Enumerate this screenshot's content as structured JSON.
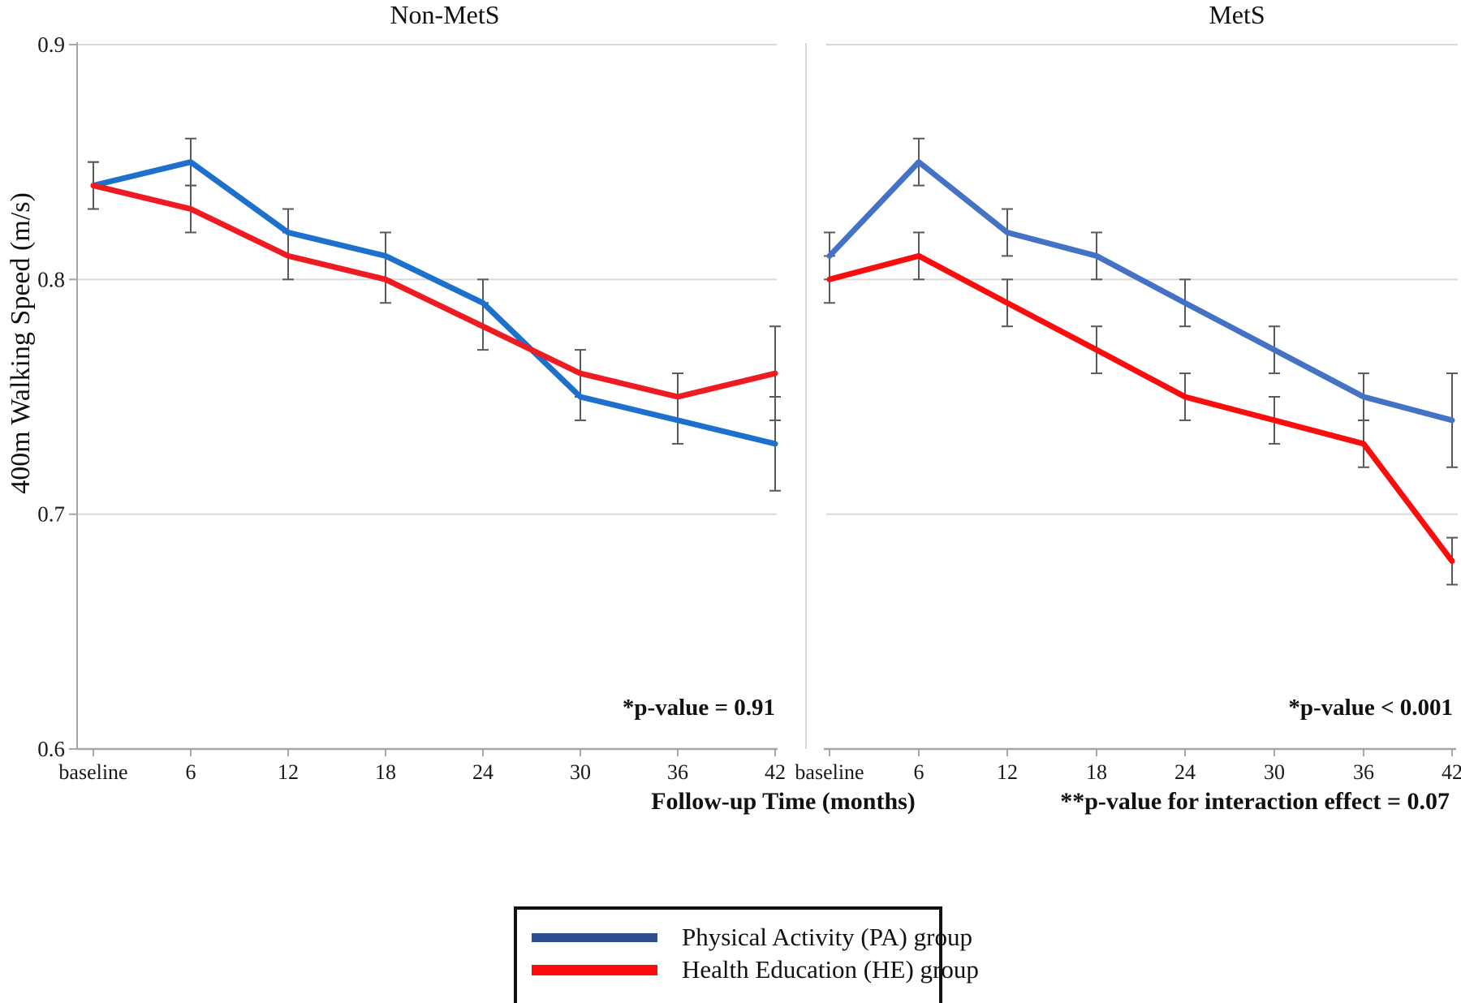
{
  "figure": {
    "y_axis_title": "400m Walking Speed (m/s)",
    "x_axis_title": "Follow-up Time (months)",
    "interaction_note": "**p-value for interaction effect = 0.07"
  },
  "chart_data": {
    "type": "line",
    "xlabel": "Follow-up Time (months)",
    "ylabel": "400m Walking Speed (m/s)",
    "ylim": [
      0.6,
      0.9
    ],
    "ytick_labels": [
      "0.9",
      "0.8",
      "0.7",
      "0.6"
    ],
    "yticks": [
      0.9,
      0.8,
      0.7,
      0.6
    ],
    "gridlines": [
      0.9,
      0.8,
      0.7
    ],
    "grid_on": true,
    "categories": [
      "baseline",
      "6",
      "12",
      "18",
      "24",
      "30",
      "36",
      "42"
    ],
    "panels": [
      {
        "title": "Non-MetS",
        "annotation": "*p-value = 0.91",
        "series": [
          {
            "name": "Physical Activity (PA) group",
            "color": "#1d71cd",
            "values": [
              0.84,
              0.85,
              0.82,
              0.81,
              0.79,
              0.75,
              0.74,
              0.73
            ],
            "errors": [
              0.01,
              0.01,
              0.01,
              0.01,
              0.01,
              0.01,
              0.01,
              0.02
            ]
          },
          {
            "name": "Health Education (HE) group",
            "color": "#ee1b22",
            "values": [
              0.84,
              0.83,
              0.81,
              0.8,
              0.78,
              0.76,
              0.75,
              0.76
            ],
            "errors": [
              0.01,
              0.01,
              0.01,
              0.01,
              0.01,
              0.01,
              0.01,
              0.02
            ]
          }
        ]
      },
      {
        "title": "MetS",
        "annotation": "*p-value < 0.001",
        "series": [
          {
            "name": "Physical Activity (PA) group",
            "color": "#4472c4",
            "values": [
              0.81,
              0.85,
              0.82,
              0.81,
              0.79,
              0.77,
              0.75,
              0.74
            ],
            "errors": [
              0.01,
              0.01,
              0.01,
              0.01,
              0.01,
              0.01,
              0.01,
              0.02
            ]
          },
          {
            "name": "Health Education (HE) group",
            "color": "#f90d0d",
            "values": [
              0.8,
              0.81,
              0.79,
              0.77,
              0.75,
              0.74,
              0.73,
              0.68
            ],
            "errors": [
              0.01,
              0.01,
              0.01,
              0.01,
              0.01,
              0.01,
              0.01,
              0.01
            ]
          }
        ]
      }
    ],
    "legend": {
      "position": "bottom-center",
      "items": [
        {
          "label": "Physical Activity (PA) group",
          "color": "#2e4d8e"
        },
        {
          "label": "Health Education (HE) group",
          "color": "#f90c0c"
        }
      ]
    },
    "annotations_note": "**p-value for interaction effect = 0.07",
    "colors": {
      "gridline": "#d9d9d9",
      "axis": "#a6a6a6",
      "error_bar": "#595959"
    }
  }
}
